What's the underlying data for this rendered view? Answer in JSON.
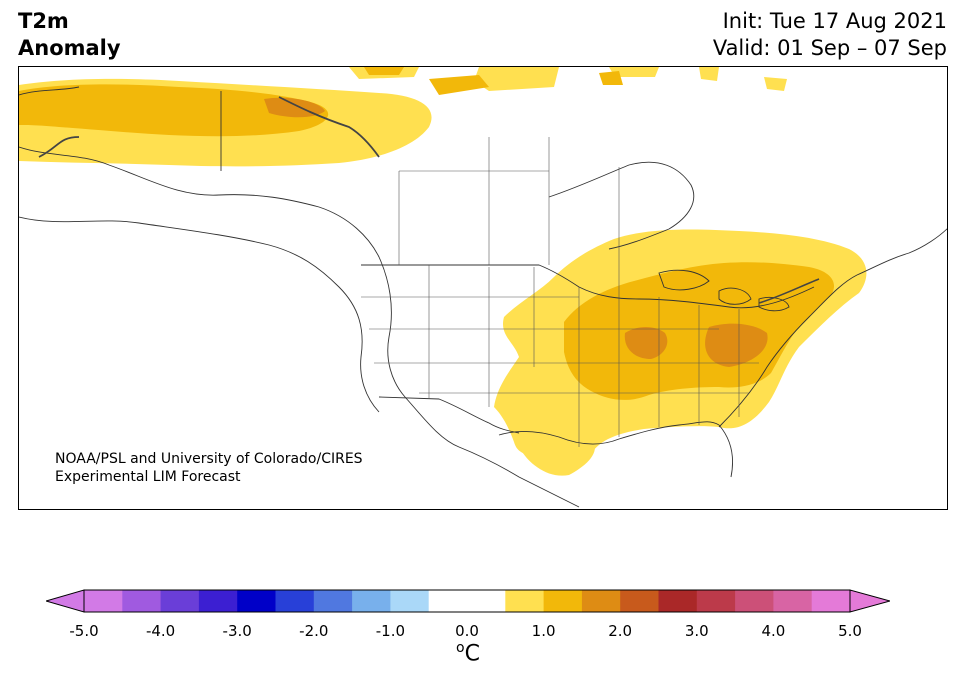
{
  "header": {
    "title_line1": "T2m",
    "title_line2": "Anomaly",
    "init": "Init: Tue 17 Aug 2021",
    "valid": "Valid: 01 Sep – 07 Sep"
  },
  "credit": {
    "line1": "NOAA/PSL and University of Colorado/CIRES",
    "line2": "Experimental LIM Forecast"
  },
  "colorbar": {
    "unit_sup": "o",
    "unit": "C",
    "ticks": [
      "-5.0",
      "-4.0",
      "-3.0",
      "-2.0",
      "-1.0",
      "0.0",
      "1.0",
      "2.0",
      "3.0",
      "4.0",
      "5.0"
    ],
    "colors": [
      "#d27ae6",
      "#a05ae0",
      "#6a3ed8",
      "#3c1fd2",
      "#0000c8",
      "#2840d8",
      "#5078e0",
      "#78b0ec",
      "#aad8f8",
      "#ffffff",
      "#ffffff",
      "#ffe050",
      "#f2b80a",
      "#de8c14",
      "#c85a1c",
      "#aa2828",
      "#bc3a4a",
      "#cc5078",
      "#d864a4",
      "#e47ad8"
    ],
    "under_color": "#d27ae6",
    "over_color": "#e47ad8"
  },
  "map": {
    "region": "North America",
    "palette": {
      "light_yellow": "#ffe050",
      "gold": "#f2b80a",
      "orange": "#de8c14"
    }
  }
}
